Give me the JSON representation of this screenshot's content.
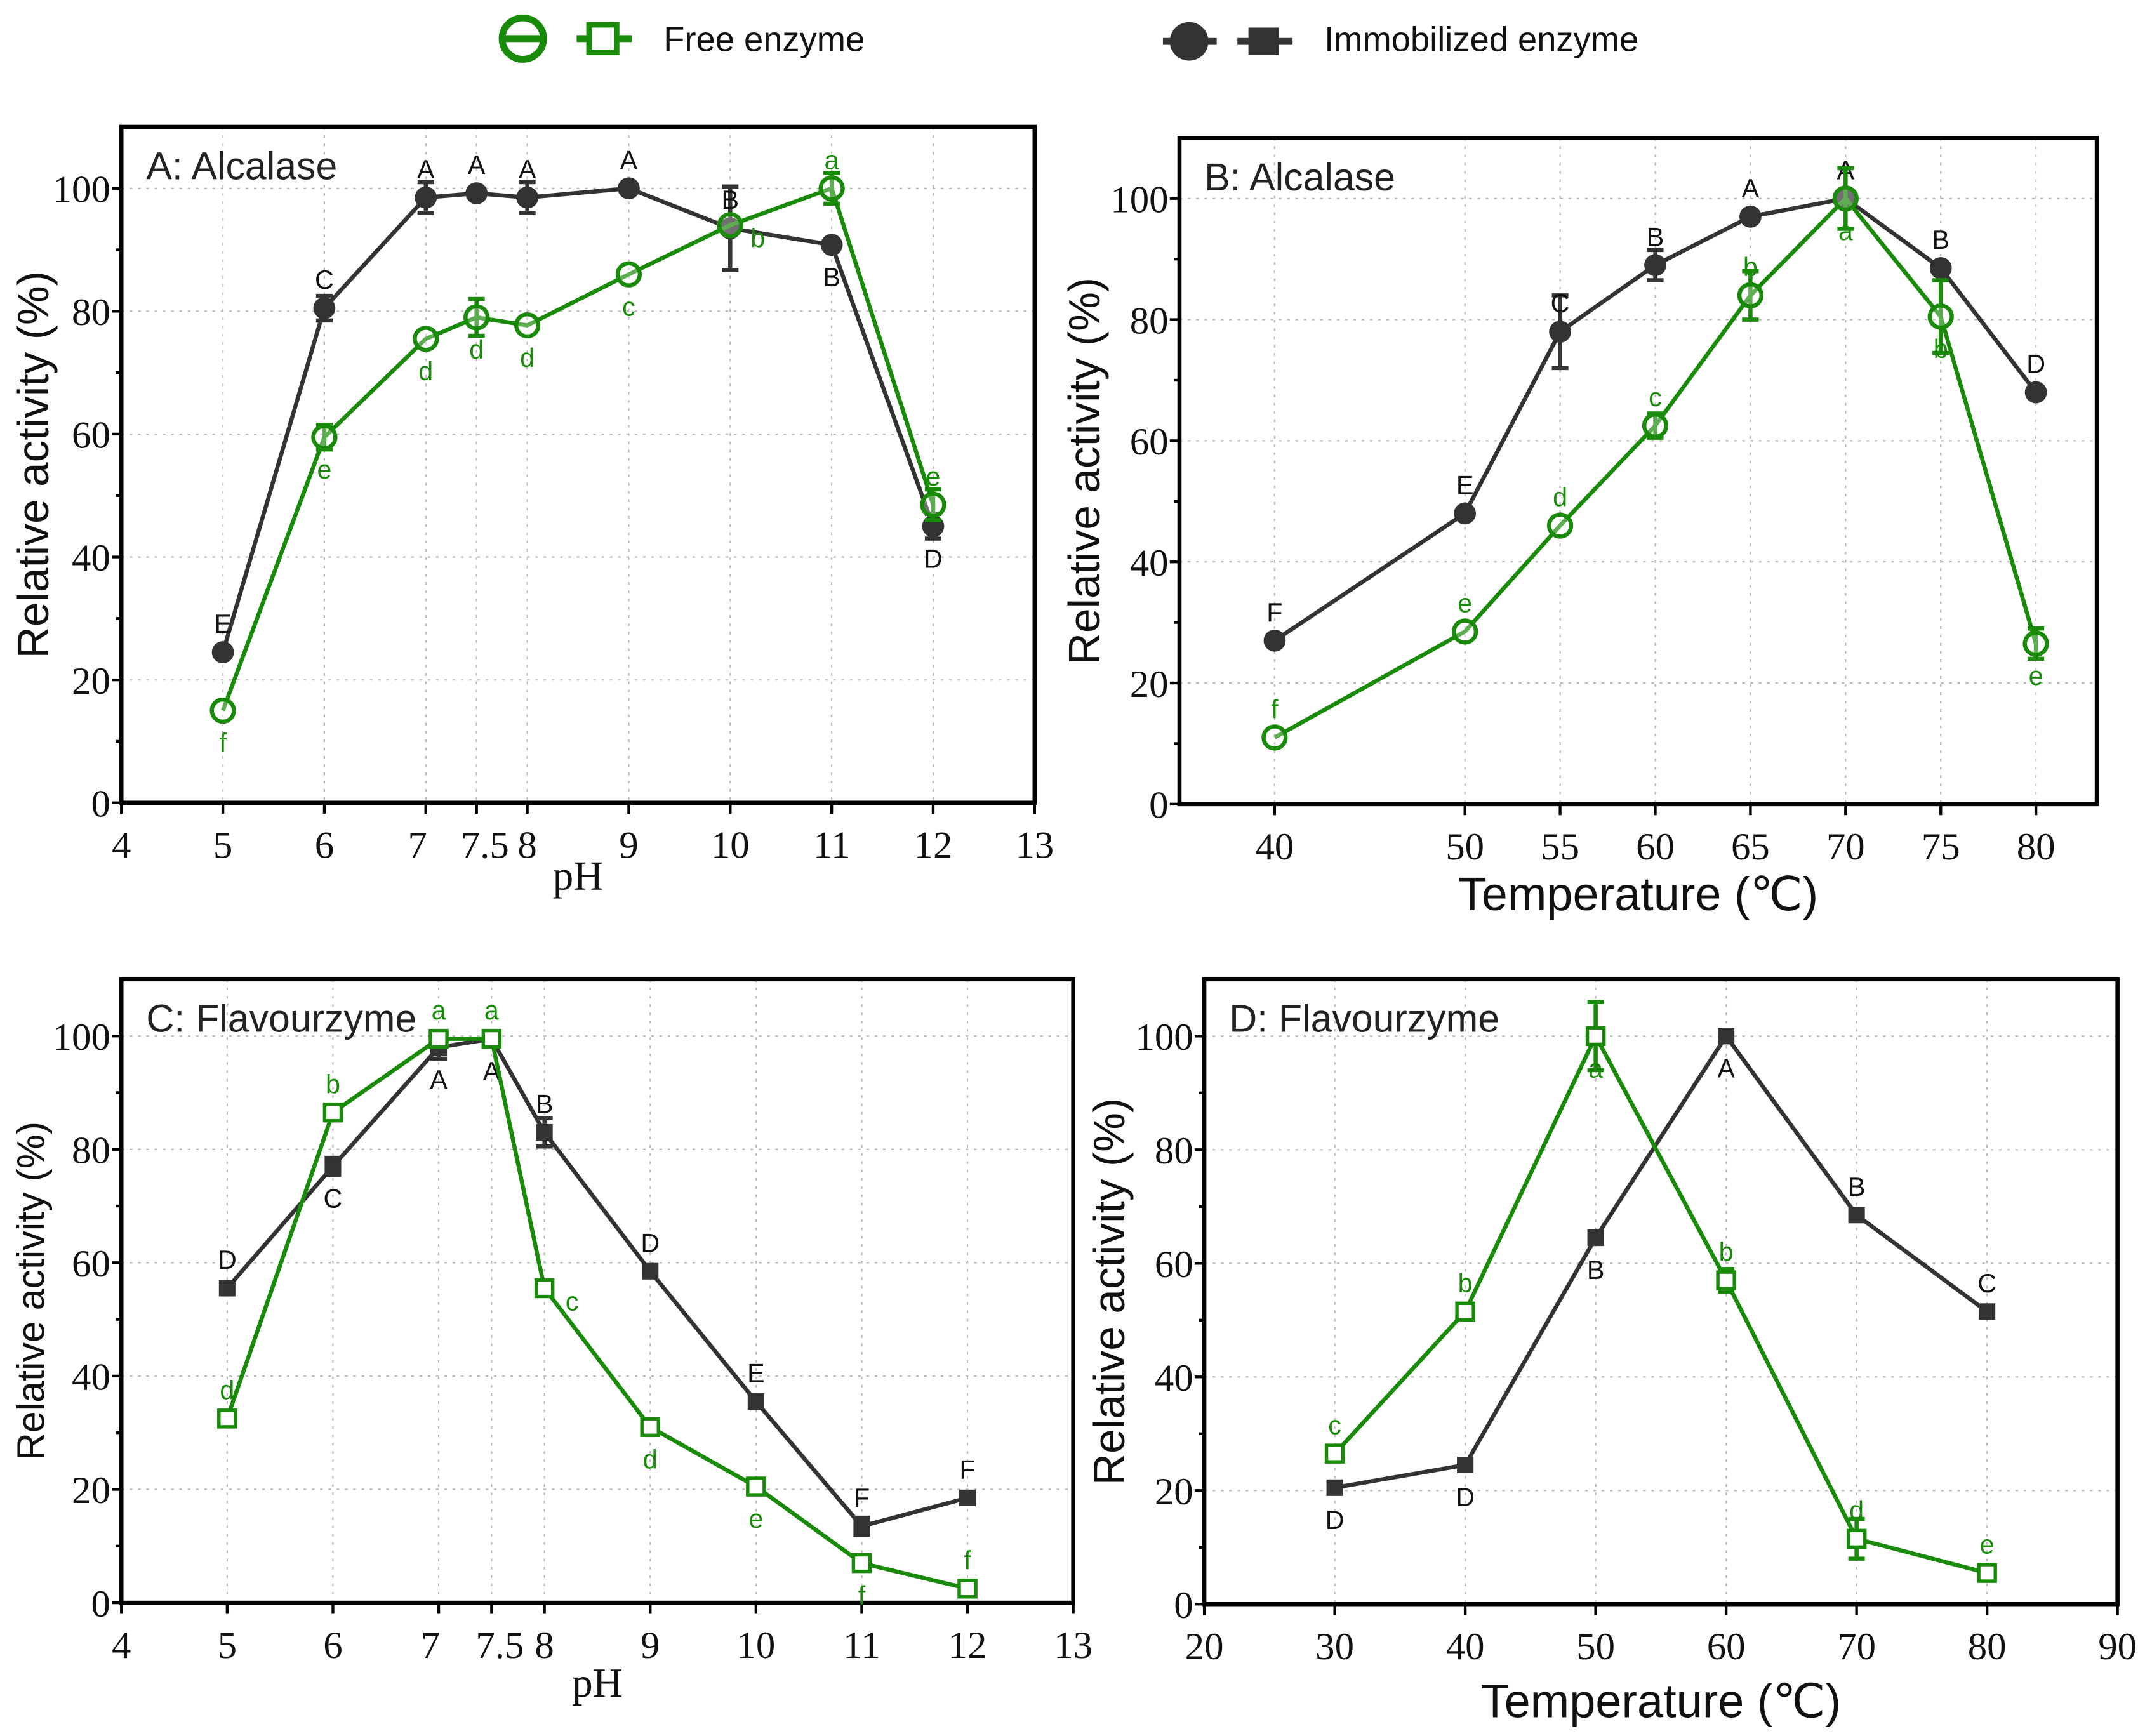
{
  "legend": {
    "free_label": "Free enzyme",
    "immobilized_label": "Immobilized enzyme"
  },
  "colors": {
    "free": "#1a8a0a",
    "immobilized": "#333333"
  },
  "chart_data": [
    {
      "type": "line",
      "title": "A: Alcalase",
      "xlabel": "pH",
      "ylabel": "Relative activity (%)",
      "xlim": [
        4,
        13
      ],
      "ylim": [
        0,
        110
      ],
      "xticks": [
        4,
        5,
        6,
        7,
        7.5,
        8,
        9,
        10,
        11,
        12,
        13
      ],
      "yticks": [
        0,
        20,
        40,
        60,
        80,
        100
      ],
      "marker": "circle",
      "grid": true,
      "x": [
        5,
        6,
        7,
        7.5,
        8,
        9,
        10,
        11,
        12
      ],
      "series": [
        {
          "name": "Immobilized enzyme",
          "values": [
            24.5,
            80.5,
            98.5,
            99.2,
            98.5,
            100,
            93.5,
            90.8,
            45
          ],
          "errors": [
            0.5,
            2,
            2.5,
            0.5,
            2.5,
            0.5,
            6.8,
            0.5,
            2
          ],
          "letters": [
            "E",
            "C",
            "A",
            "A",
            "A",
            "A",
            "B",
            "B",
            "D"
          ],
          "letter_pos": [
            "above",
            "above",
            "above",
            "above",
            "above",
            "above",
            "above",
            "below",
            "below"
          ]
        },
        {
          "name": "Free enzyme",
          "values": [
            15,
            59.5,
            75.5,
            79,
            77.7,
            86,
            94,
            100,
            48.5
          ],
          "errors": [
            0.5,
            2,
            0.5,
            3,
            0.5,
            0.5,
            0.5,
            2.5,
            2.5
          ],
          "letters": [
            "f",
            "e",
            "d",
            "d",
            "d",
            "c",
            "b",
            "a",
            "e"
          ],
          "letter_pos": [
            "below",
            "below",
            "below",
            "below",
            "below",
            "below",
            "right",
            "above",
            "above"
          ]
        }
      ]
    },
    {
      "type": "line",
      "title": "B: Alcalase",
      "xlabel": "Temperature (℃)",
      "ylabel": "Relative activity (%)",
      "xlim": [
        35,
        83.2
      ],
      "ylim": [
        0,
        110
      ],
      "xticks": [
        40,
        50,
        55,
        60,
        65,
        70,
        75,
        80
      ],
      "yticks": [
        0,
        20,
        40,
        60,
        80,
        100
      ],
      "marker": "circle",
      "grid": true,
      "x": [
        40,
        50,
        55,
        60,
        65,
        70,
        75,
        80
      ],
      "series": [
        {
          "name": "Immobilized enzyme",
          "values": [
            27,
            48,
            78,
            89,
            97,
            100,
            88.5,
            68
          ],
          "errors": [
            0.5,
            0.5,
            6,
            2.5,
            0.5,
            1,
            0.5,
            0.5
          ],
          "letters": [
            "F",
            "E",
            "C",
            "B",
            "A",
            "A",
            "B",
            "D"
          ],
          "letter_pos": [
            "above",
            "above",
            "above",
            "above",
            "above",
            "above",
            "above",
            "above"
          ]
        },
        {
          "name": "Free enzyme",
          "values": [
            11,
            28.5,
            46,
            62.5,
            84,
            100,
            80.5,
            26.5
          ],
          "errors": [
            0.5,
            0.5,
            0.5,
            2,
            4,
            5,
            6,
            2.5
          ],
          "letters": [
            "f",
            "e",
            "d",
            "c",
            "b",
            "a",
            "b",
            "e"
          ],
          "letter_pos": [
            "above",
            "above",
            "above",
            "above",
            "above",
            "below",
            "below",
            "below"
          ]
        }
      ]
    },
    {
      "type": "line",
      "title": "C: Flavourzyme",
      "xlabel": "pH",
      "ylabel": "Relative activity (%)",
      "xlim": [
        4,
        13
      ],
      "ylim": [
        0,
        110
      ],
      "xticks": [
        4,
        5,
        6,
        7,
        7.5,
        8,
        9,
        10,
        11,
        12,
        13
      ],
      "yticks": [
        0,
        20,
        40,
        60,
        80,
        100
      ],
      "marker": "square",
      "grid": true,
      "x": [
        5,
        6,
        7,
        7.5,
        8,
        9,
        10,
        11,
        12
      ],
      "series": [
        {
          "name": "Immobilized enzyme",
          "values": [
            55.5,
            77,
            98,
            99.5,
            83,
            58.5,
            35.5,
            13.5,
            18.5
          ],
          "errors": [
            0.5,
            1.5,
            2,
            0.5,
            2.5,
            0.5,
            0.5,
            1.5,
            0.5
          ],
          "letters": [
            "D",
            "C",
            "A",
            "A",
            "B",
            "D",
            "E",
            "F",
            "F"
          ],
          "letter_pos": [
            "above",
            "below",
            "below",
            "below",
            "above",
            "above",
            "above",
            "above",
            "above"
          ]
        },
        {
          "name": "Free enzyme",
          "values": [
            32.5,
            86.5,
            99.5,
            99.5,
            55.5,
            31,
            20.5,
            7,
            2.5
          ],
          "errors": [
            0.5,
            0.5,
            0.5,
            0.5,
            0.5,
            0.5,
            0.5,
            0.5,
            0.5
          ],
          "letters": [
            "d",
            "b",
            "a",
            "a",
            "c",
            "d",
            "e",
            "f",
            "f"
          ],
          "letter_pos": [
            "above",
            "above",
            "above",
            "above",
            "right",
            "below",
            "below",
            "below",
            "above"
          ]
        }
      ]
    },
    {
      "type": "line",
      "title": "D: Flavourzyme",
      "xlabel": "Temperature (℃)",
      "ylabel": "Relative activity (%)",
      "xlim": [
        20,
        90
      ],
      "ylim": [
        0,
        110
      ],
      "xticks": [
        20,
        30,
        40,
        50,
        60,
        70,
        80,
        90
      ],
      "yticks": [
        0,
        20,
        40,
        60,
        80,
        100
      ],
      "marker": "square",
      "grid": true,
      "x": [
        30,
        40,
        50,
        60,
        70,
        80
      ],
      "series": [
        {
          "name": "Immobilized enzyme",
          "values": [
            20.5,
            24.5,
            64.5,
            100,
            68.5,
            51.5
          ],
          "errors": [
            0.5,
            0.5,
            0.5,
            0.5,
            0.5,
            0.5
          ],
          "letters": [
            "D",
            "D",
            "B",
            "A",
            "B",
            "C"
          ],
          "letter_pos": [
            "below",
            "below",
            "below",
            "below",
            "above",
            "above"
          ]
        },
        {
          "name": "Free enzyme",
          "values": [
            26.5,
            51.5,
            100,
            57,
            11.5,
            5.5
          ],
          "errors": [
            0.5,
            1,
            6,
            2,
            3.5,
            0.5
          ],
          "letters": [
            "c",
            "b",
            "a",
            "b",
            "d",
            "e"
          ],
          "letter_pos": [
            "above",
            "above",
            "below",
            "above",
            "above",
            "above"
          ]
        }
      ]
    }
  ]
}
